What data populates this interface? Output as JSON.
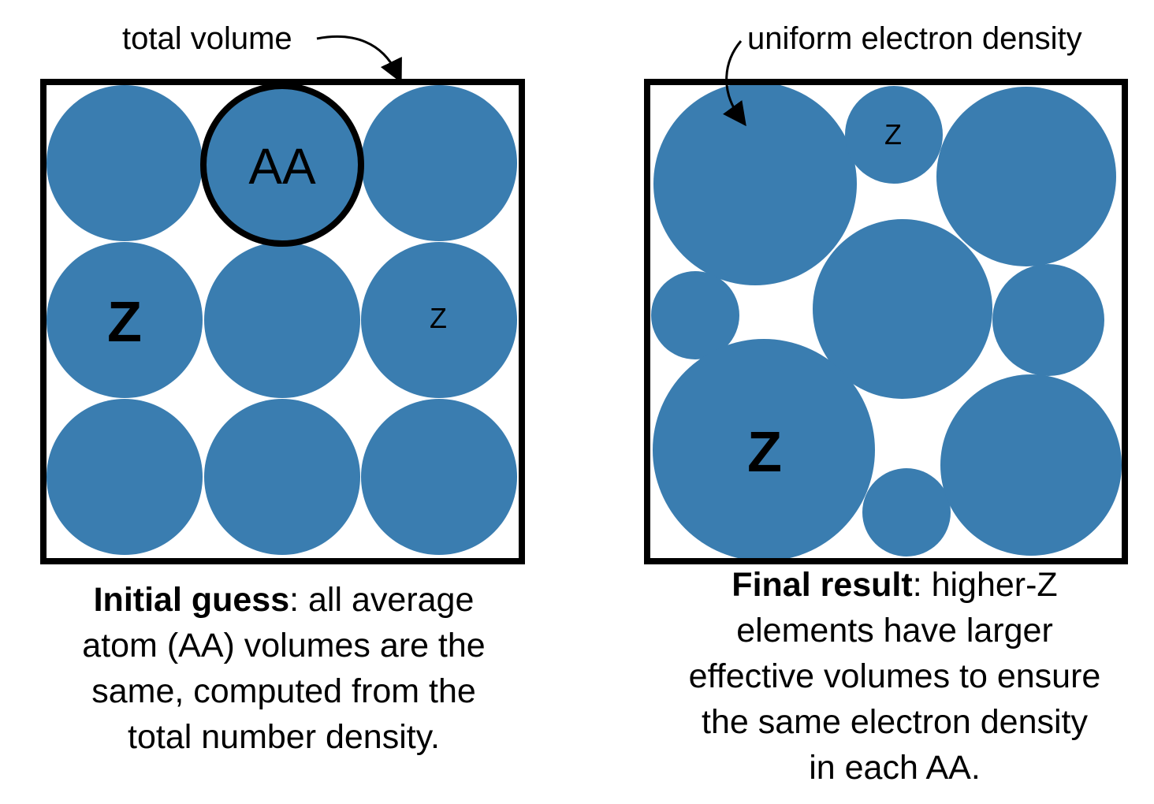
{
  "colors": {
    "atom_fill": "#3a7db0",
    "box_stroke": "#000000",
    "background": "#ffffff"
  },
  "left_panel": {
    "annotation": "total volume",
    "aa_label": "AA",
    "z_large_label": "Z",
    "z_small_label": "Z",
    "caption_bold": "Initial guess",
    "caption_lines": [
      ": all average",
      "atom (AA) volumes are the",
      "same, computed from the",
      "total number density."
    ]
  },
  "right_panel": {
    "annotation": "uniform electron density",
    "z_large_label": "Z",
    "z_small_label": "Z",
    "caption_bold": "Final result",
    "caption_lines": [
      ": higher-Z",
      "elements have larger",
      "effective volumes to ensure",
      "the same electron density",
      "in each AA."
    ]
  }
}
